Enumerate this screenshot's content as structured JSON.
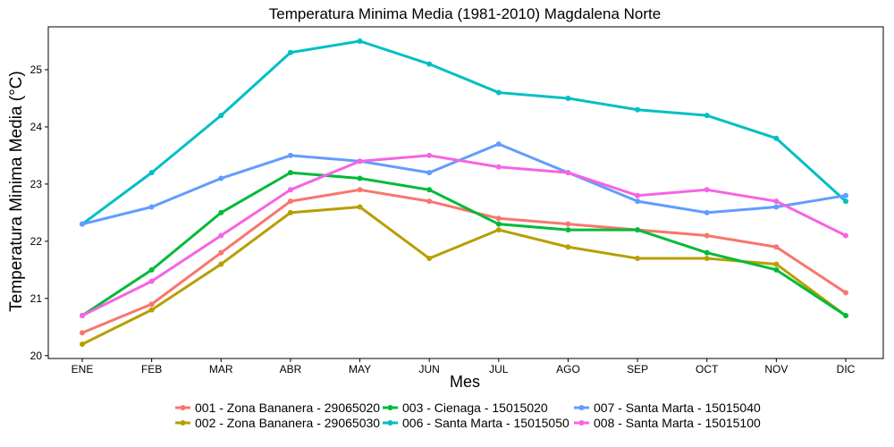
{
  "chart_data": {
    "type": "line",
    "title": "Temperatura Minima Media (1981-2010)  Magdalena Norte",
    "xlabel": "Mes",
    "ylabel": "Temperatura Minima Media  (°C)",
    "categories": [
      "ENE",
      "FEB",
      "MAR",
      "ABR",
      "MAY",
      "JUN",
      "JUL",
      "AGO",
      "SEP",
      "OCT",
      "NOV",
      "DIC"
    ],
    "ylim": [
      19.95,
      25.75
    ],
    "yticks": [
      20,
      21,
      22,
      23,
      24,
      25
    ],
    "grid": false,
    "legend_position": "bottom",
    "series": [
      {
        "name": "001 - Zona Bananera - 29065020",
        "color": "#F8766D",
        "values": [
          20.4,
          20.9,
          21.8,
          22.7,
          22.9,
          22.7,
          22.4,
          22.3,
          22.2,
          22.1,
          21.9,
          21.1
        ]
      },
      {
        "name": "002 - Zona Bananera - 29065030",
        "color": "#B79F00",
        "values": [
          20.2,
          20.8,
          21.6,
          22.5,
          22.6,
          21.7,
          22.2,
          21.9,
          21.7,
          21.7,
          21.6,
          20.7
        ]
      },
      {
        "name": "003 - Cienaga - 15015020",
        "color": "#00BA38",
        "values": [
          20.7,
          21.5,
          22.5,
          23.2,
          23.1,
          22.9,
          22.3,
          22.2,
          22.2,
          21.8,
          21.5,
          20.7
        ]
      },
      {
        "name": "006 - Santa Marta - 15015050",
        "color": "#00BFC4",
        "values": [
          22.3,
          23.2,
          24.2,
          25.3,
          25.5,
          25.1,
          24.6,
          24.5,
          24.3,
          24.2,
          23.8,
          22.7
        ]
      },
      {
        "name": "007 - Santa Marta - 15015040",
        "color": "#619CFF",
        "values": [
          22.3,
          22.6,
          23.1,
          23.5,
          23.4,
          23.2,
          23.7,
          23.2,
          22.7,
          22.5,
          22.6,
          22.8
        ]
      },
      {
        "name": "008 - Santa Marta - 15015100",
        "color": "#F564E3",
        "values": [
          20.7,
          21.3,
          22.1,
          22.9,
          23.4,
          23.5,
          23.3,
          23.2,
          22.8,
          22.9,
          22.7,
          22.1
        ]
      }
    ]
  }
}
